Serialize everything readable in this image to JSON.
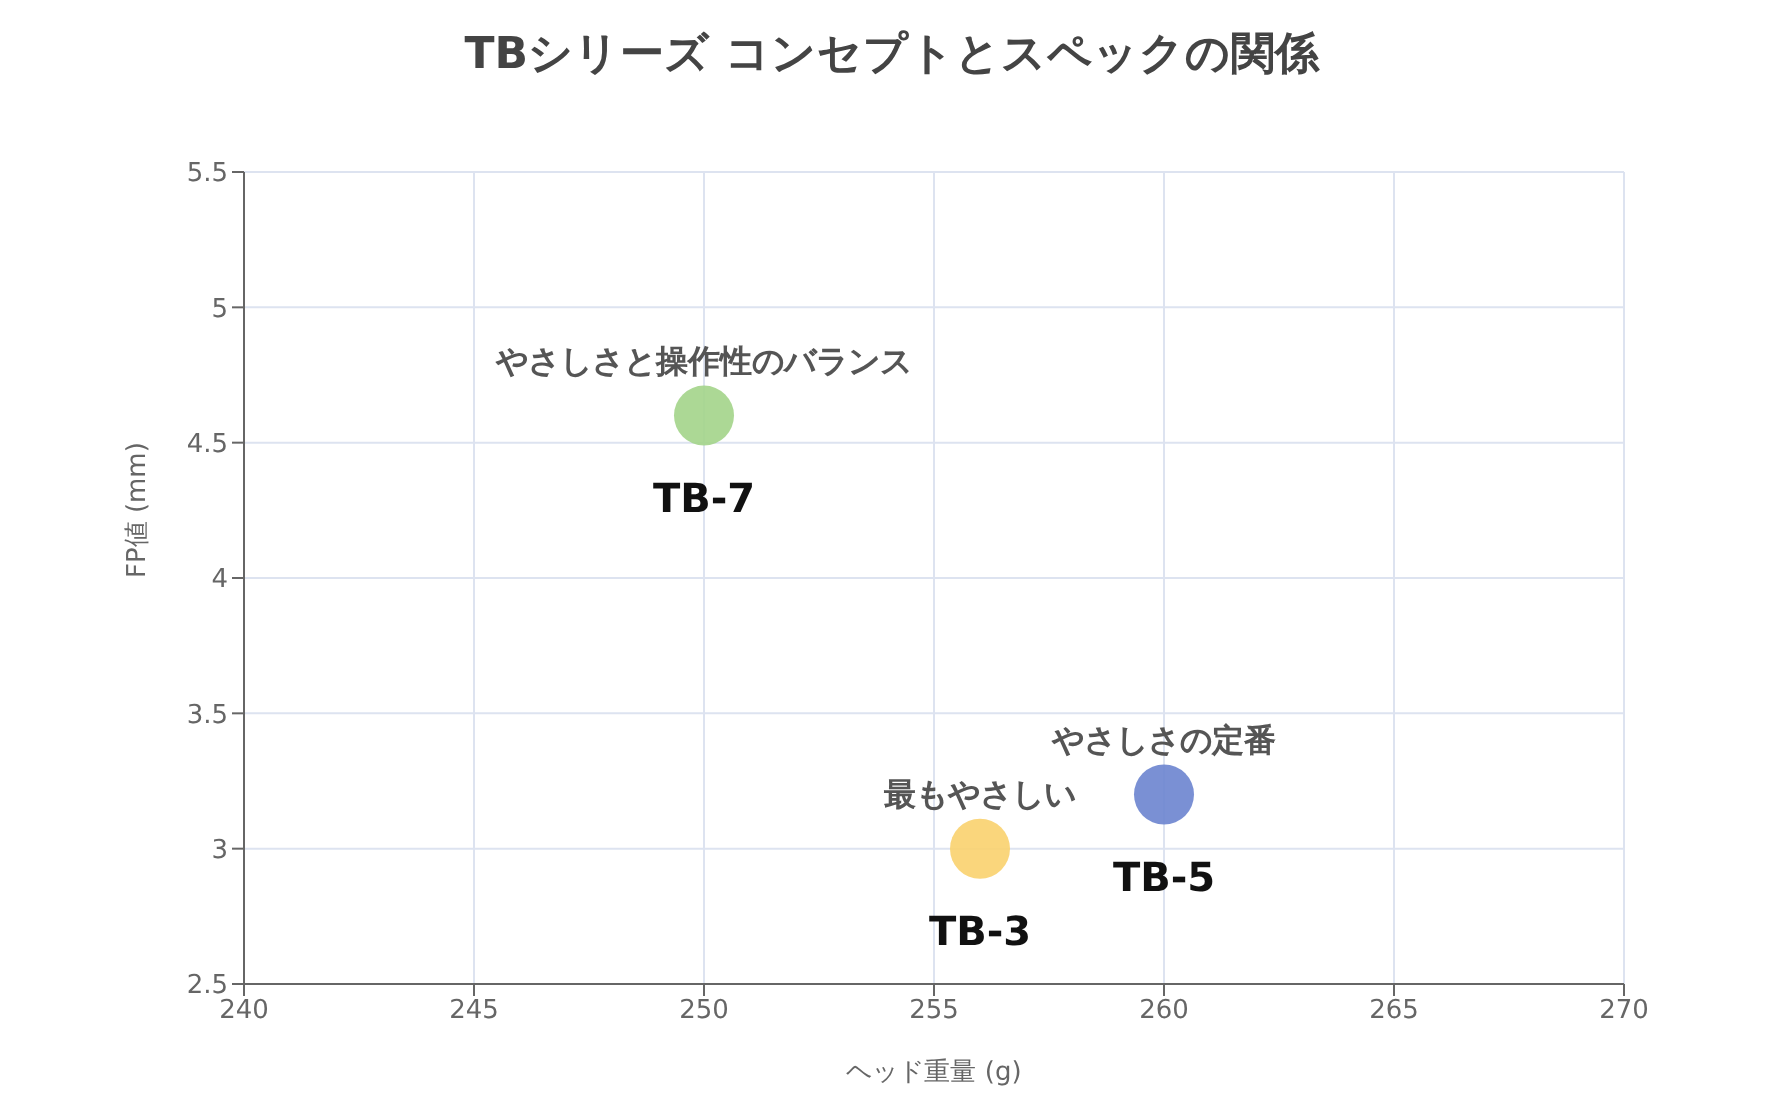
{
  "chart_data": {
    "type": "scatter",
    "title": "TBシリーズ コンセプトとスペックの関係",
    "xlabel": "ヘッド重量 (g)",
    "ylabel": "FP値 (mm)",
    "series": [
      {
        "name": "TB-7",
        "color": "#a3d48a",
        "x": [
          250
        ],
        "values": [
          4.6
        ]
      },
      {
        "name": "TB-3",
        "color": "#f9d16e",
        "x": [
          256
        ],
        "values": [
          3.0
        ]
      },
      {
        "name": "TB-5",
        "color": "#6b84cf",
        "x": [
          260
        ],
        "values": [
          3.2
        ]
      }
    ],
    "annotations": [
      {
        "text": "やさしさと操作性のバランス",
        "x": 250,
        "y": 4.6
      },
      {
        "text": "最もやさしい",
        "x": 256,
        "y": 3.0
      },
      {
        "text": "やさしさの定番",
        "x": 260,
        "y": 3.2
      }
    ],
    "xlim": [
      240,
      270
    ],
    "xticks": [
      240,
      245,
      250,
      255,
      260,
      265,
      270
    ],
    "ylim": [
      2.5,
      5.5
    ],
    "yticks": [
      2.5,
      3,
      3.5,
      4,
      4.5,
      5,
      5.5
    ],
    "grid": true,
    "marker": "circle",
    "legend": false
  }
}
